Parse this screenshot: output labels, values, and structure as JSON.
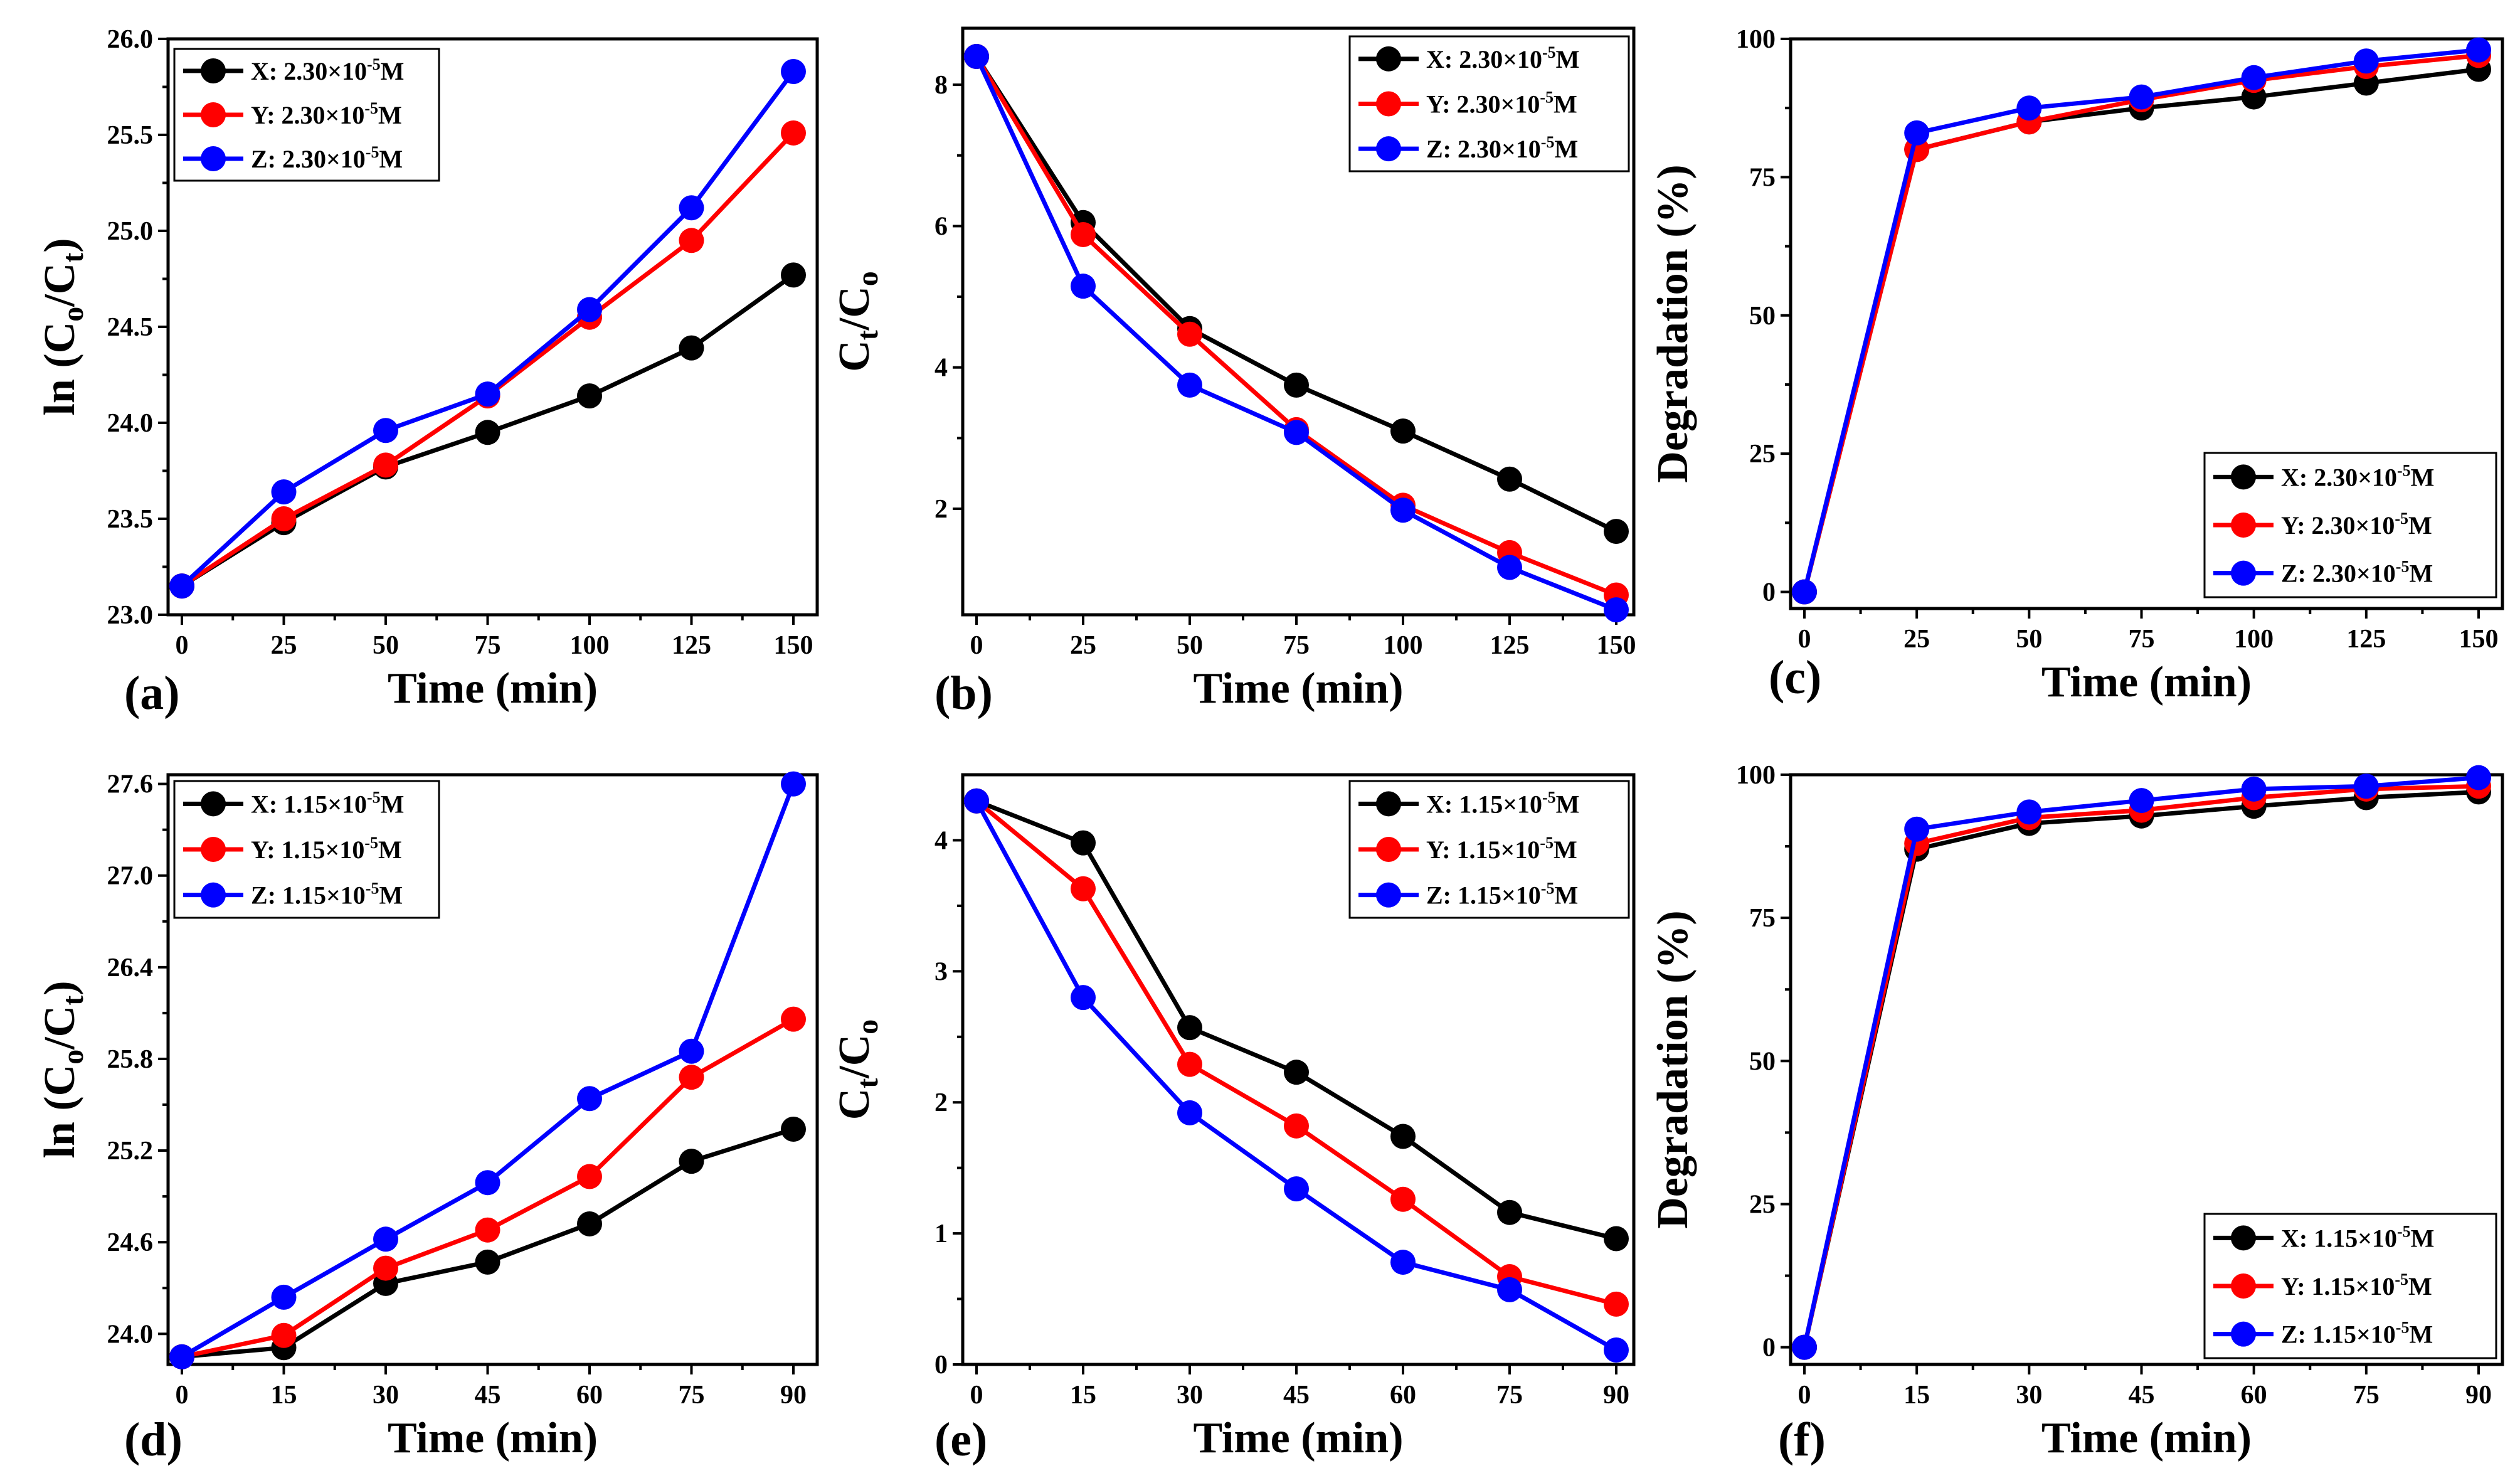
{
  "colors": {
    "X": "#000000",
    "Y": "#ff0000",
    "Z": "#0000ff"
  },
  "chart_data": [
    {
      "panel": "(a)",
      "type": "line",
      "xlabel": "Time (min)",
      "ylabel": "ln (Co/Ct)",
      "ylabel_parts": [
        "ln (C",
        "o",
        "/C",
        "t",
        ")"
      ],
      "x": [
        0,
        25,
        50,
        75,
        100,
        125,
        150
      ],
      "xlim": [
        0,
        150
      ],
      "ylim": [
        23.0,
        26.0
      ],
      "xticks": [
        0,
        25,
        50,
        75,
        100,
        125,
        150
      ],
      "yticks": [
        "23.0",
        "23.5",
        "24.0",
        "24.5",
        "25.0",
        "25.5",
        "26.0"
      ],
      "legend_position": "top-left",
      "series": [
        {
          "name": "X",
          "label_main": "X: 2.30×10",
          "label_exp": "-5",
          "label_unit": "M",
          "values": [
            23.15,
            23.48,
            23.77,
            23.95,
            24.14,
            24.39,
            24.77
          ]
        },
        {
          "name": "Y",
          "label_main": "Y: 2.30×10",
          "label_exp": "-5",
          "label_unit": "M",
          "values": [
            23.15,
            23.5,
            23.78,
            24.14,
            24.55,
            24.95,
            25.51
          ]
        },
        {
          "name": "Z",
          "label_main": "Z: 2.30×10",
          "label_exp": "-5",
          "label_unit": "M",
          "values": [
            23.15,
            23.64,
            23.96,
            24.15,
            24.59,
            25.12,
            25.83
          ]
        }
      ]
    },
    {
      "panel": "(b)",
      "type": "line",
      "xlabel": "Time (min)",
      "ylabel": "Ct/Co",
      "ylabel_parts": [
        "C",
        "t",
        "/C",
        "o",
        ""
      ],
      "x": [
        0,
        25,
        50,
        75,
        100,
        125,
        150
      ],
      "xlim": [
        0,
        150
      ],
      "ylim": [
        0.5,
        8.8
      ],
      "xticks": [
        0,
        25,
        50,
        75,
        100,
        125,
        150
      ],
      "yticks": [
        "2",
        "4",
        "6",
        "8"
      ],
      "legend_position": "top-right",
      "series": [
        {
          "name": "X",
          "label_main": "X: 2.30×10",
          "label_exp": "-5",
          "label_unit": "M",
          "values": [
            8.4,
            6.05,
            4.55,
            3.75,
            3.1,
            2.42,
            1.68
          ]
        },
        {
          "name": "Y",
          "label_main": "Y: 2.30×10",
          "label_exp": "-5",
          "label_unit": "M",
          "values": [
            8.4,
            5.88,
            4.47,
            3.12,
            2.05,
            1.38,
            0.78
          ]
        },
        {
          "name": "Z",
          "label_main": "Z: 2.30×10",
          "label_exp": "-5",
          "label_unit": "M",
          "values": [
            8.4,
            5.15,
            3.75,
            3.08,
            1.98,
            1.17,
            0.57
          ]
        }
      ]
    },
    {
      "panel": "(c)",
      "type": "line",
      "xlabel": "Time (min)",
      "ylabel": "Degradation (%)",
      "ylabel_parts": [
        "Degradation (%)",
        "",
        "",
        "",
        ""
      ],
      "x": [
        0,
        25,
        50,
        75,
        100,
        125,
        150
      ],
      "xlim": [
        0,
        150
      ],
      "ylim": [
        -3,
        100
      ],
      "xticks": [
        0,
        25,
        50,
        75,
        100,
        125,
        150
      ],
      "yticks": [
        "0",
        "25",
        "50",
        "75",
        "100"
      ],
      "legend_position": "bottom-right",
      "series": [
        {
          "name": "X",
          "label_main": "X: 2.30×10",
          "label_exp": "-5",
          "label_unit": "M",
          "values": [
            0,
            80,
            85,
            87.5,
            89.5,
            92,
            94.5
          ]
        },
        {
          "name": "Y",
          "label_main": "Y: 2.30×10",
          "label_exp": "-5",
          "label_unit": "M",
          "values": [
            0,
            80,
            85,
            89,
            92.5,
            95,
            97
          ]
        },
        {
          "name": "Z",
          "label_main": "Z: 2.30×10",
          "label_exp": "-5",
          "label_unit": "M",
          "values": [
            0,
            83,
            87.5,
            89.5,
            93,
            96,
            98
          ]
        }
      ]
    },
    {
      "panel": "(d)",
      "type": "line",
      "xlabel": "Time (min)",
      "ylabel": "ln (Co/Ct)",
      "ylabel_parts": [
        "ln (C",
        "o",
        "/C",
        "t",
        ")"
      ],
      "x": [
        0,
        15,
        30,
        45,
        60,
        75,
        90
      ],
      "xlim": [
        0,
        90
      ],
      "ylim": [
        23.8,
        27.66
      ],
      "xticks": [
        0,
        15,
        30,
        45,
        60,
        75,
        90
      ],
      "yticks": [
        "24.0",
        "24.6",
        "25.2",
        "25.8",
        "26.4",
        "27.0",
        "27.6"
      ],
      "legend_position": "top-left",
      "series": [
        {
          "name": "X",
          "label_main": "X: 1.15×10",
          "label_exp": "-5",
          "label_unit": "M",
          "values": [
            23.85,
            23.91,
            24.33,
            24.47,
            24.72,
            25.13,
            25.34
          ]
        },
        {
          "name": "Y",
          "label_main": "Y: 1.15×10",
          "label_exp": "-5",
          "label_unit": "M",
          "values": [
            23.85,
            23.99,
            24.43,
            24.68,
            25.03,
            25.68,
            26.06
          ]
        },
        {
          "name": "Z",
          "label_main": "Z: 1.15×10",
          "label_exp": "-5",
          "label_unit": "M",
          "values": [
            23.85,
            24.24,
            24.62,
            24.99,
            25.54,
            25.85,
            27.6
          ]
        }
      ]
    },
    {
      "panel": "(e)",
      "type": "line",
      "xlabel": "Time (min)",
      "ylabel": "Ct/Co",
      "ylabel_parts": [
        "C",
        "t",
        "/C",
        "o",
        ""
      ],
      "x": [
        0,
        15,
        30,
        45,
        60,
        75,
        90
      ],
      "xlim": [
        0,
        90
      ],
      "ylim": [
        0,
        4.5
      ],
      "xticks": [
        0,
        15,
        30,
        45,
        60,
        75,
        90
      ],
      "yticks": [
        "0",
        "1",
        "2",
        "3",
        "4"
      ],
      "legend_position": "top-right",
      "series": [
        {
          "name": "X",
          "label_main": "X: 1.15×10",
          "label_exp": "-5",
          "label_unit": "M",
          "values": [
            4.3,
            3.98,
            2.57,
            2.23,
            1.74,
            1.16,
            0.96
          ]
        },
        {
          "name": "Y",
          "label_main": "Y: 1.15×10",
          "label_exp": "-5",
          "label_unit": "M",
          "values": [
            4.3,
            3.63,
            2.29,
            1.82,
            1.26,
            0.67,
            0.46
          ]
        },
        {
          "name": "Z",
          "label_main": "Z: 1.15×10",
          "label_exp": "-5",
          "label_unit": "M",
          "values": [
            4.3,
            2.8,
            1.92,
            1.34,
            0.78,
            0.57,
            0.11
          ]
        }
      ]
    },
    {
      "panel": "(f)",
      "type": "line",
      "xlabel": "Time (min)",
      "ylabel": "Degradation (%)",
      "ylabel_parts": [
        "Degradation (%)",
        "",
        "",
        "",
        ""
      ],
      "x": [
        0,
        15,
        30,
        45,
        60,
        75,
        90
      ],
      "xlim": [
        0,
        90
      ],
      "ylim": [
        -3,
        100
      ],
      "xticks": [
        0,
        15,
        30,
        45,
        60,
        75,
        90
      ],
      "yticks": [
        "0",
        "25",
        "50",
        "75",
        "100"
      ],
      "legend_position": "bottom-right",
      "series": [
        {
          "name": "X",
          "label_main": "X: 1.15×10",
          "label_exp": "-5",
          "label_unit": "M",
          "values": [
            0,
            87,
            91.5,
            92.8,
            94.5,
            96,
            97
          ]
        },
        {
          "name": "Y",
          "label_main": "Y: 1.15×10",
          "label_exp": "-5",
          "label_unit": "M",
          "values": [
            0,
            88,
            92.5,
            93.8,
            96,
            97.5,
            98
          ]
        },
        {
          "name": "Z",
          "label_main": "Z: 1.15×10",
          "label_exp": "-5",
          "label_unit": "M",
          "values": [
            0,
            90.5,
            93.5,
            95.5,
            97.5,
            98,
            99.5
          ]
        }
      ]
    }
  ]
}
